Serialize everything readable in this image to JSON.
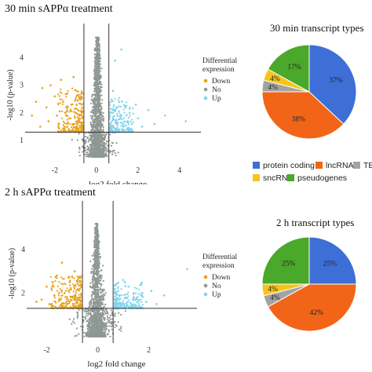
{
  "colors": {
    "down": "#e6a11a",
    "no": "#8f9893",
    "up": "#7fd4ec",
    "line": "#333333"
  },
  "chart_data": [
    {
      "type": "scatter",
      "title": "30 min sAPPα treatment",
      "xlabel": "log2 fold change",
      "ylabel": "-log10 (p-value)",
      "xticks": [
        "-2",
        "0",
        "2",
        "4"
      ],
      "yticks": [
        "1",
        "2",
        "3",
        "4"
      ],
      "xlim": [
        -3.2,
        4.8
      ],
      "ylim": [
        0.4,
        4.9
      ],
      "thresholds": {
        "fc": [
          -0.6,
          0.6
        ],
        "p": 1.3
      },
      "legend": {
        "title": "Differential\nexpression",
        "entries": [
          "Down",
          "No",
          "Up"
        ]
      },
      "series": [
        {
          "name": "Down",
          "points": [
            [
              -3.1,
              1.9
            ],
            [
              -2.9,
              2.4
            ],
            [
              -2.6,
              2.9
            ],
            [
              -2.4,
              2.2
            ],
            [
              -2.2,
              3.0
            ],
            [
              -2.0,
              2.6
            ],
            [
              -1.9,
              1.9
            ],
            [
              -1.7,
              3.2
            ],
            [
              -1.6,
              2.4
            ],
            [
              -1.5,
              2.0
            ],
            [
              -1.4,
              2.7
            ],
            [
              -1.3,
              1.8
            ],
            [
              -1.2,
              2.3
            ],
            [
              -1.1,
              3.3
            ],
            [
              -1.0,
              2.0
            ],
            [
              -0.9,
              1.7
            ],
            [
              -0.8,
              2.5
            ],
            [
              -0.7,
              1.5
            ],
            [
              -1.8,
              1.6
            ],
            [
              -2.3,
              1.7
            ],
            [
              -2.7,
              1.5
            ],
            [
              -1.1,
              1.6
            ],
            [
              -0.8,
              1.9
            ],
            [
              -1.4,
              1.5
            ]
          ]
        },
        {
          "name": "Up",
          "points": [
            [
              0.7,
              1.5
            ],
            [
              0.8,
              1.8
            ],
            [
              0.9,
              2.1
            ],
            [
              1.0,
              1.6
            ],
            [
              1.1,
              2.4
            ],
            [
              1.2,
              1.9
            ],
            [
              1.3,
              1.5
            ],
            [
              1.4,
              2.2
            ],
            [
              1.5,
              1.7
            ],
            [
              1.6,
              2.0
            ],
            [
              1.7,
              1.6
            ],
            [
              1.9,
              2.3
            ],
            [
              2.0,
              1.8
            ],
            [
              2.2,
              1.5
            ],
            [
              2.5,
              2.1
            ],
            [
              2.8,
              1.6
            ],
            [
              3.3,
              1.9
            ],
            [
              4.3,
              1.7
            ],
            [
              0.9,
              3.9
            ],
            [
              1.2,
              4.3
            ],
            [
              0.8,
              2.8
            ]
          ]
        },
        {
          "name": "No",
          "points": []
        }
      ]
    },
    {
      "type": "pie",
      "title": "30 min transcript types",
      "slices": [
        {
          "label": "protein coding",
          "value": 37,
          "text": "37%",
          "color": "#3d6fd6"
        },
        {
          "label": "lncRNA",
          "value": 38,
          "text": "38%",
          "color": "#f26519"
        },
        {
          "label": "TEC",
          "value": 4,
          "text": "4%",
          "color": "#a3a3a3"
        },
        {
          "label": "sncRNA",
          "value": 4,
          "text": "4%",
          "color": "#f7c41a"
        },
        {
          "label": "pseudogenes",
          "value": 17,
          "text": "17%",
          "color": "#4aa82a"
        }
      ]
    },
    {
      "type": "scatter",
      "title": "2 h sAPPα treatment",
      "xlabel": "log2 fold change",
      "ylabel": "-log10 (p-value)",
      "xticks": [
        "-2",
        "0",
        "2"
      ],
      "yticks": [
        "2",
        "4"
      ],
      "xlim": [
        -2.6,
        3.7
      ],
      "ylim": [
        0.0,
        5.8
      ],
      "thresholds": {
        "fc": [
          -0.6,
          0.6
        ],
        "p": 1.3
      },
      "legend": {
        "title": "Differential\nexpression",
        "entries": [
          "Down",
          "No",
          "Up"
        ]
      },
      "series": [
        {
          "name": "Down",
          "points": [
            [
              -2.4,
              1.6
            ],
            [
              -2.0,
              2.3
            ],
            [
              -1.8,
              1.4
            ],
            [
              -1.6,
              2.8
            ],
            [
              -1.5,
              1.7
            ],
            [
              -1.4,
              3.4
            ],
            [
              -1.3,
              2.0
            ],
            [
              -1.2,
              1.5
            ],
            [
              -1.1,
              2.5
            ],
            [
              -1.0,
              1.8
            ],
            [
              -0.9,
              3.0
            ],
            [
              -0.8,
              1.6
            ],
            [
              -0.7,
              2.2
            ],
            [
              -1.7,
              1.9
            ],
            [
              -1.9,
              1.5
            ],
            [
              -2.2,
              1.7
            ],
            [
              -0.95,
              1.4
            ],
            [
              -0.75,
              2.7
            ]
          ]
        },
        {
          "name": "Up",
          "points": [
            [
              0.7,
              1.6
            ],
            [
              0.8,
              2.1
            ],
            [
              0.9,
              1.4
            ],
            [
              1.0,
              2.6
            ],
            [
              1.1,
              1.8
            ],
            [
              1.2,
              2.3
            ],
            [
              1.3,
              1.5
            ],
            [
              1.4,
              2.0
            ],
            [
              1.5,
              1.7
            ],
            [
              1.7,
              2.4
            ],
            [
              1.9,
              1.6
            ],
            [
              2.1,
              2.1
            ],
            [
              2.3,
              1.5
            ],
            [
              2.6,
              1.9
            ],
            [
              3.5,
              3.1
            ],
            [
              0.85,
              1.9
            ],
            [
              1.05,
              1.5
            ],
            [
              1.6,
              1.4
            ]
          ]
        },
        {
          "name": "No",
          "points": []
        }
      ]
    },
    {
      "type": "pie",
      "title": "2 h transcript types",
      "slices": [
        {
          "label": "protein coding",
          "value": 25,
          "text": "25%",
          "color": "#3d6fd6"
        },
        {
          "label": "lncRNA",
          "value": 42,
          "text": "42%",
          "color": "#f26519"
        },
        {
          "label": "TEC",
          "value": 4,
          "text": "4%",
          "color": "#a3a3a3"
        },
        {
          "label": "sncRNA",
          "value": 4,
          "text": "4%",
          "color": "#f7c41a"
        },
        {
          "label": "pseudogenes",
          "value": 25,
          "text": "25%",
          "color": "#4aa82a"
        }
      ]
    }
  ],
  "pie_legend": [
    {
      "label": "protein coding",
      "color": "#3d6fd6"
    },
    {
      "label": "lncRNA",
      "color": "#f26519"
    },
    {
      "label": "TEC",
      "color": "#a3a3a3"
    },
    {
      "label": "sncRNA",
      "color": "#f7c41a"
    },
    {
      "label": "pseudogenes",
      "color": "#4aa82a"
    }
  ]
}
